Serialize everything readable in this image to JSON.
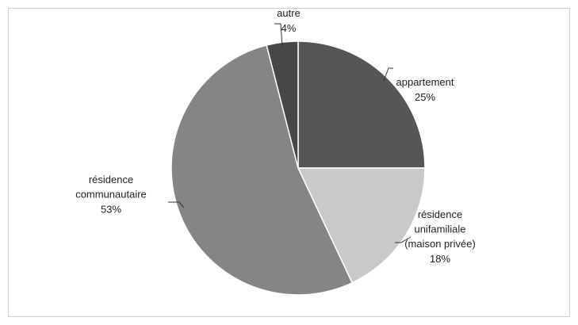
{
  "chart_data": {
    "type": "pie",
    "categories": [
      "appartement",
      "résidence\nunifamiliale\n(maison privée)",
      "résidence\ncommunautaire",
      "autre"
    ],
    "values": [
      25,
      18,
      53,
      4
    ],
    "value_labels": [
      "25%",
      "18%",
      "53%",
      "4%"
    ],
    "colors": [
      "#565656",
      "#c9c9c9",
      "#858585",
      "#474747"
    ]
  }
}
